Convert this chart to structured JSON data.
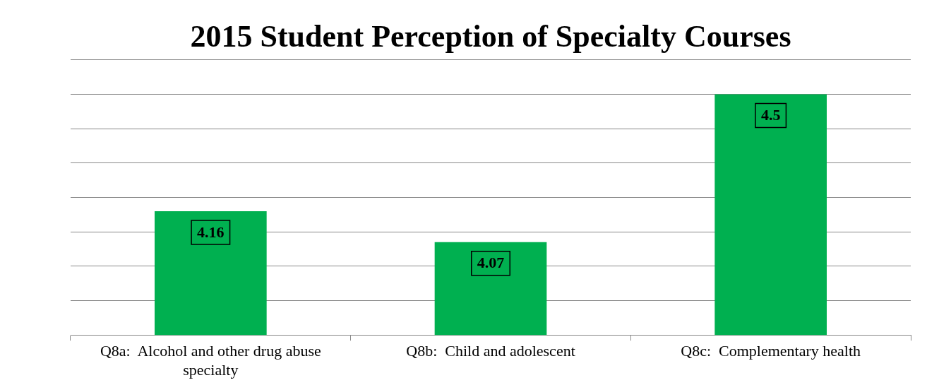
{
  "chart_data": {
    "type": "bar",
    "title": "2015 Student Perception of Specialty Courses",
    "categories": [
      "Q8a:  Alcohol and other drug abuse specialty",
      "Q8b:  Child and adolescent",
      "Q8c:  Complementary health"
    ],
    "values": [
      4.16,
      4.07,
      4.5
    ],
    "color": "#00b050",
    "ylim": [
      3.8,
      4.6
    ],
    "yticks": [
      {
        "value": 3.8,
        "label": null
      },
      {
        "value": 3.9,
        "label": null
      },
      {
        "value": 4.0,
        "label": null
      },
      {
        "value": 4.1,
        "label": null
      },
      {
        "value": 4.2,
        "label": null
      },
      {
        "value": 4.3,
        "label": null
      },
      {
        "value": 4.4,
        "label": null
      },
      {
        "value": 4.5,
        "label": null
      },
      {
        "value": 4.6,
        "label": null
      }
    ],
    "tick_labels": "x",
    "grid": "y",
    "data_labels": true,
    "legend": false
  }
}
